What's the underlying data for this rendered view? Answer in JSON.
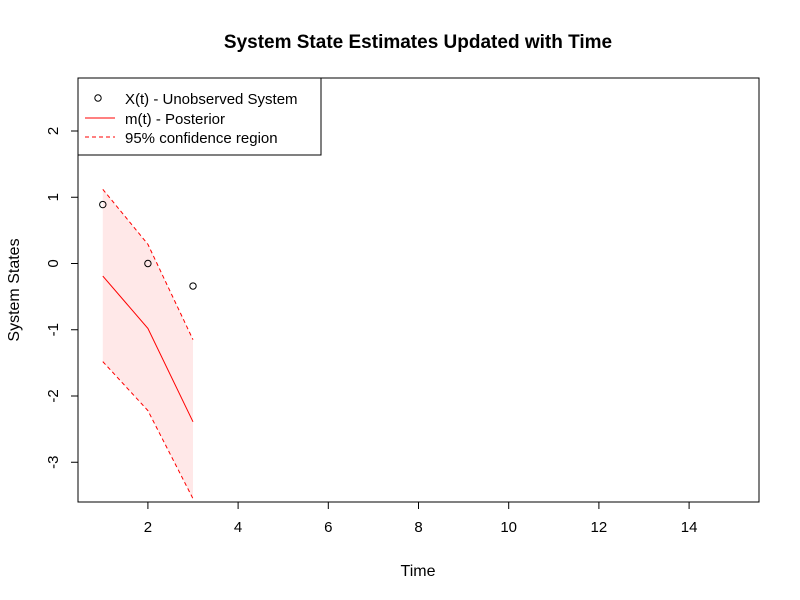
{
  "chart_data": {
    "type": "line",
    "title": "System State Estimates Updated with Time",
    "xlabel": "Time",
    "ylabel": "System States",
    "xlim": [
      0.45,
      15.55
    ],
    "ylim": [
      -3.6,
      2.8
    ],
    "xticks": [
      2,
      4,
      6,
      8,
      10,
      12,
      14
    ],
    "yticks": [
      -3,
      -2,
      -1,
      0,
      1,
      2
    ],
    "grid": false,
    "legend_position": "top-left",
    "observed": {
      "name": "X(t) - Unobserved System",
      "style": "points",
      "x": [
        1,
        2,
        3
      ],
      "y": [
        0.89,
        0.0,
        -0.34
      ]
    },
    "posterior": {
      "name": "m(t) - Posterior",
      "style": "solid",
      "x": [
        1,
        2,
        3
      ],
      "y": [
        -0.19,
        -0.98,
        -2.39
      ]
    },
    "ci_upper": {
      "x": [
        1,
        2,
        3
      ],
      "y": [
        1.12,
        0.29,
        -1.15
      ]
    },
    "ci_lower": {
      "x": [
        1,
        2,
        3
      ],
      "y": [
        -1.48,
        -2.22,
        -3.55
      ]
    },
    "ci_name": "95% confidence region",
    "colors": {
      "posterior": "#ff0000",
      "ci": "#ff0000",
      "ci_fill": "#ffe8e8",
      "points": "#000000"
    }
  }
}
